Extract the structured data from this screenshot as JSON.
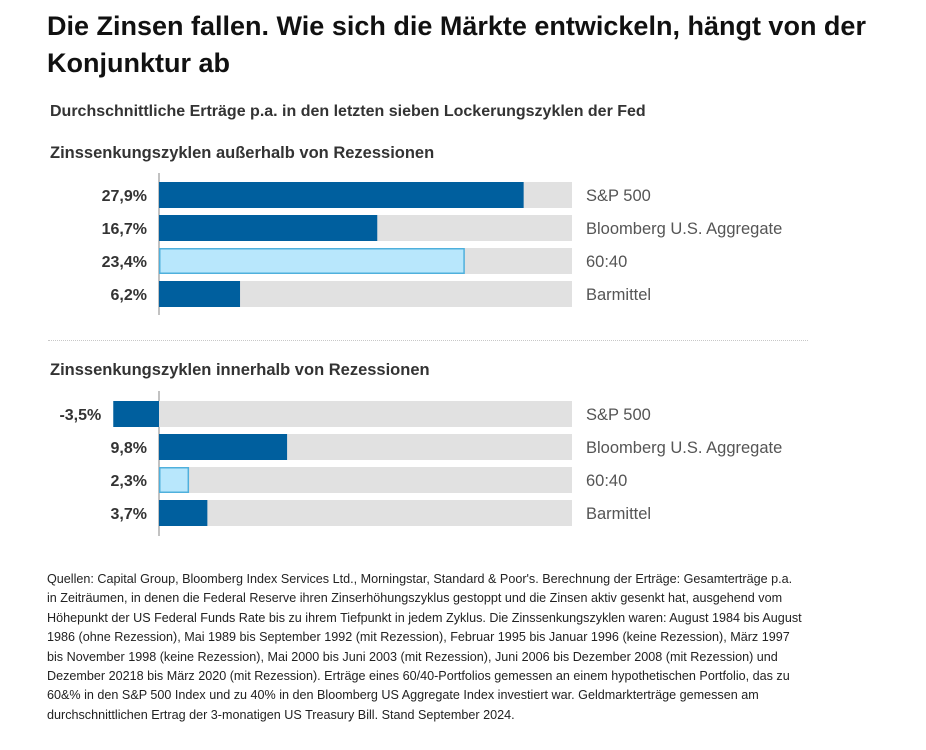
{
  "title": "Die Zinsen fallen. Wie sich die Märkte entwickeln, hängt von der Konjunktur ab",
  "footnote": "Quellen: Capital Group, Bloomberg Index Services Ltd., Morningstar, Standard & Poor's. Berechnung der Erträge: Gesamterträge p.a. in Zeiträumen, in denen die Federal Reserve ihren Zinserhöhungszyklus gestoppt und die Zinsen aktiv gesenkt hat, ausgehend vom Höhepunkt der US Federal Funds Rate bis zu ihrem Tiefpunkt in jedem Zyklus. Die Zinssenkungszyklen waren: August 1984 bis August 1986 (ohne Rezession), Mai 1989 bis September 1992 (mit Rezession), Februar 1995 bis Januar 1996 (keine Rezession), März 1997 bis November 1998 (keine Rezession), Mai 2000 bis Juni 2003 (mit Rezession), Juni 2006 bis Dezember 2008 (mit Rezession) und Dezember 20218 bis März 2020 (mit Rezession). Erträge eines 60/40-Portfolios gemessen an einem hypothetischen Portfolio, das zu 60&% in den S&P 500 Index und zu 40% in den Bloomberg US Aggregate Index investiert war. Geldmarkterträge gemessen am durchschnittlichen Ertrag der 3-monatigen US Treasury Bill. Stand September 2024.",
  "colors": {
    "primary_bar": "#005f9e",
    "highlight_bar_fill": "#b8e7fc",
    "highlight_bar_border": "#4fb0dc",
    "track": "#e1e1e1",
    "axis": "#999999"
  },
  "chart_data": [
    {
      "type": "bar",
      "orientation": "horizontal",
      "title": "Durchschnittliche Erträge p.a. in den letzten sieben Lockerungszyklen der Fed",
      "panel_title": "Zinssenkungszyklen außerhalb von Rezessionen",
      "categories": [
        "S&P 500",
        "Bloomberg U.S. Aggregate",
        "60:40",
        "Barmittel"
      ],
      "values": [
        27.9,
        16.7,
        23.4,
        6.2
      ],
      "value_labels": [
        "27,9%",
        "16,7%",
        "23,4%",
        "6,2%"
      ],
      "highlight": [
        false,
        false,
        true,
        false
      ],
      "unit": "%",
      "xlim": [
        -3.5,
        31.6
      ],
      "grid": false,
      "legend": "none"
    },
    {
      "type": "bar",
      "orientation": "horizontal",
      "panel_title": "Zinssenkungszyklen innerhalb von Rezessionen",
      "categories": [
        "S&P 500",
        "Bloomberg U.S. Aggregate",
        "60:40",
        "Barmittel"
      ],
      "values": [
        -3.5,
        9.8,
        2.3,
        3.7
      ],
      "value_labels": [
        "-3,5%",
        "9,8%",
        "2,3%",
        "3,7%"
      ],
      "highlight": [
        false,
        false,
        true,
        false
      ],
      "unit": "%",
      "xlim": [
        -3.5,
        31.6
      ],
      "grid": false,
      "legend": "none"
    }
  ]
}
